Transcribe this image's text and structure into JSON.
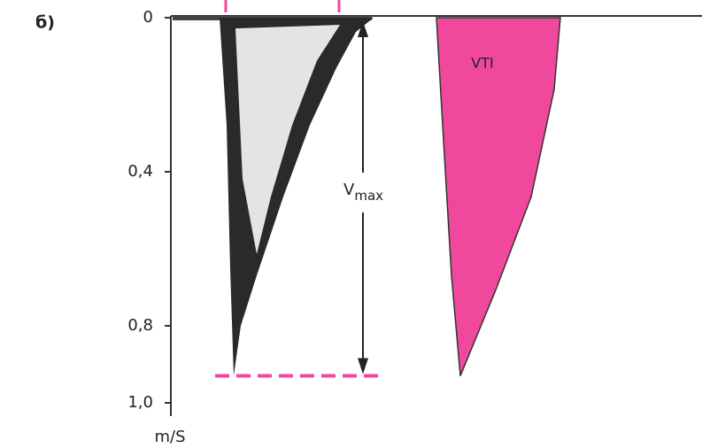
{
  "chart_data": {
    "type": "doppler",
    "panel_label": "б)",
    "ylabel": "m/S",
    "ylim": [
      0,
      1.0
    ],
    "yticks": [
      0,
      {
        "value": 0.4,
        "label": "0,4"
      },
      {
        "value": 0.8,
        "label": "0,8"
      },
      {
        "value": 1.0,
        "label": "1,0"
      }
    ],
    "vmax": 0.93,
    "vmax_label": {
      "main": "V",
      "sub": "max"
    },
    "vti_label": "VTI",
    "color": "#f0489c"
  }
}
